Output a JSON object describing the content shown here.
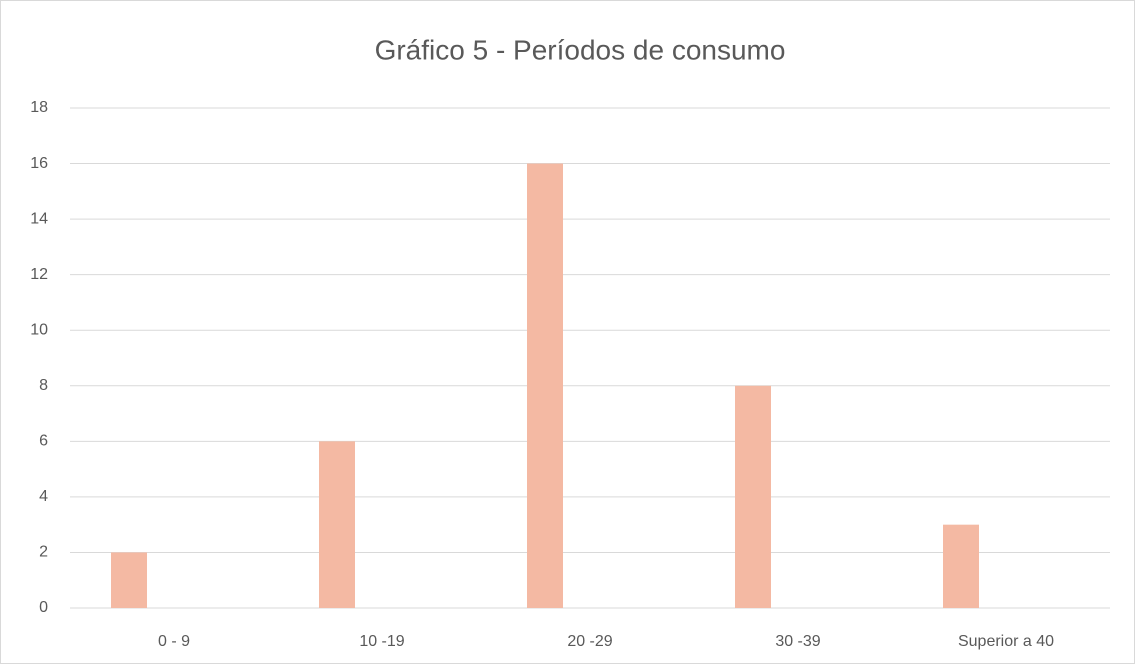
{
  "chart_data": {
    "type": "bar",
    "title": "Gráfico 5 - Períodos de consumo",
    "categories": [
      "0 - 9",
      "10 -19",
      "20 -29",
      "30 -39",
      "Superior a 40"
    ],
    "values": [
      2,
      6,
      16,
      8,
      3
    ],
    "color": "#f4b9a3",
    "ylim": [
      0,
      18
    ],
    "yticks": [
      0,
      2,
      4,
      6,
      8,
      10,
      12,
      14,
      16,
      18
    ],
    "grid": true
  }
}
